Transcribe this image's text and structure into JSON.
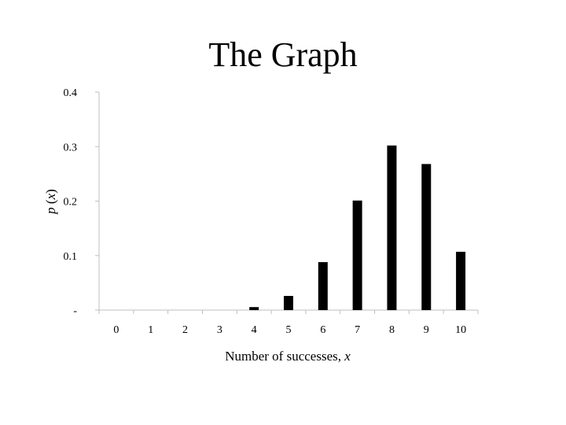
{
  "slide": {
    "title": "The Graph"
  },
  "chart_data": {
    "type": "bar",
    "title": "",
    "xlabel_text": "Number of successes, ",
    "xlabel_var": "x",
    "ylabel_p": "p",
    "ylabel_open": " (",
    "ylabel_var": "x",
    "ylabel_close": ")",
    "categories": [
      "0",
      "1",
      "2",
      "3",
      "4",
      "5",
      "6",
      "7",
      "8",
      "9",
      "10"
    ],
    "values": [
      0.0,
      0.0,
      0.0,
      0.0,
      0.0055,
      0.026,
      0.088,
      0.201,
      0.302,
      0.268,
      0.107
    ],
    "ylim": [
      0,
      0.4
    ],
    "yticks": [
      0,
      0.1,
      0.2,
      0.3,
      0.4
    ],
    "ytick_labels": [
      "-",
      "0.1",
      "0.2",
      "0.3",
      "0.4"
    ],
    "bar_color": "#000000",
    "axis_color": "#bfbfbf",
    "grid": false,
    "legend": "none"
  }
}
